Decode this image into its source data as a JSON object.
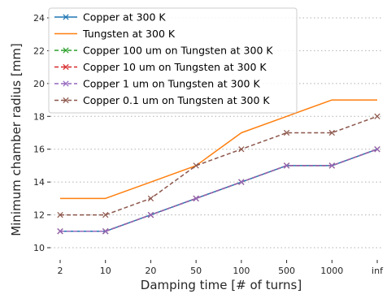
{
  "chart_data": {
    "type": "line",
    "title": "",
    "xlabel": "Damping time [# of turns]",
    "ylabel": "Minimum chamber radius [mm]",
    "categories": [
      "2",
      "10",
      "20",
      "50",
      "100",
      "500",
      "1000",
      "inf"
    ],
    "ylim": [
      9,
      24.5
    ],
    "yticks": [
      10,
      12,
      14,
      16,
      18,
      20,
      22,
      24
    ],
    "grid": "horizontal-dotted",
    "legend_position": "top-left",
    "series": [
      {
        "name": "Copper at 300 K",
        "color": "#1f77b4",
        "dash": "solid",
        "marker": "x",
        "values": [
          11,
          11,
          12,
          13,
          14,
          15,
          15,
          16
        ]
      },
      {
        "name": "Tungsten at 300 K",
        "color": "#ff7f0e",
        "dash": "solid",
        "marker": "none",
        "values": [
          13,
          13,
          14,
          15,
          17,
          18,
          19,
          19
        ]
      },
      {
        "name": "Copper 100 um on Tungsten at 300 K",
        "color": "#2ca02c",
        "dash": "dashed",
        "marker": "x",
        "values": [
          11,
          11,
          12,
          13,
          14,
          15,
          15,
          16
        ]
      },
      {
        "name": "Copper 10 um on Tungsten at 300 K",
        "color": "#d62728",
        "dash": "dashed",
        "marker": "x",
        "values": [
          11,
          11,
          12,
          13,
          14,
          15,
          15,
          16
        ]
      },
      {
        "name": "Copper 1 um on Tungsten at 300 K",
        "color": "#9467bd",
        "dash": "dashed",
        "marker": "x",
        "values": [
          11,
          11,
          12,
          13,
          14,
          15,
          15,
          16
        ]
      },
      {
        "name": "Copper 0.1 um on Tungsten at 300 K",
        "color": "#8c564b",
        "dash": "dashed",
        "marker": "x",
        "values": [
          12,
          12,
          13,
          15,
          16,
          17,
          17,
          18
        ]
      }
    ]
  }
}
